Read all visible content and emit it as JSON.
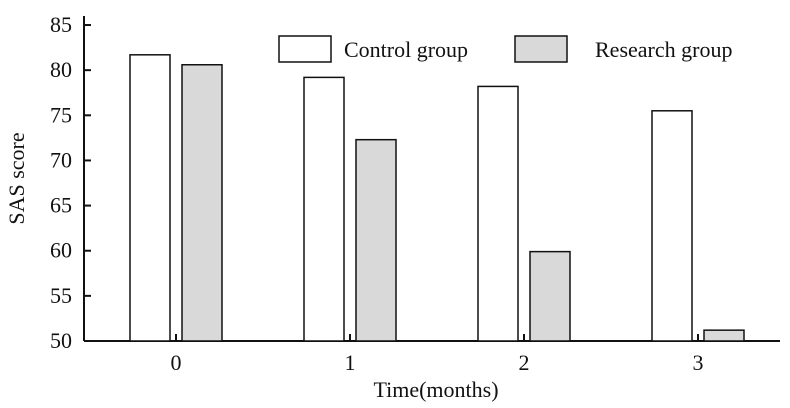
{
  "chart_data": {
    "type": "bar",
    "title": "",
    "xlabel": "Time(months)",
    "ylabel": "SAS score",
    "categories": [
      "0",
      "1",
      "2",
      "3"
    ],
    "series": [
      {
        "name": "Control group",
        "values": [
          81.7,
          79.2,
          78.2,
          75.5
        ],
        "color": "#ffffff"
      },
      {
        "name": "Research group",
        "values": [
          80.6,
          72.3,
          59.9,
          51.2
        ],
        "color": "#d9d9d9"
      }
    ],
    "ylim": [
      50,
      86
    ],
    "yticks": [
      50,
      55,
      60,
      65,
      70,
      75,
      80,
      85
    ],
    "grid": false,
    "legend_position": "top-right",
    "bar_outline_color": "#111111"
  }
}
